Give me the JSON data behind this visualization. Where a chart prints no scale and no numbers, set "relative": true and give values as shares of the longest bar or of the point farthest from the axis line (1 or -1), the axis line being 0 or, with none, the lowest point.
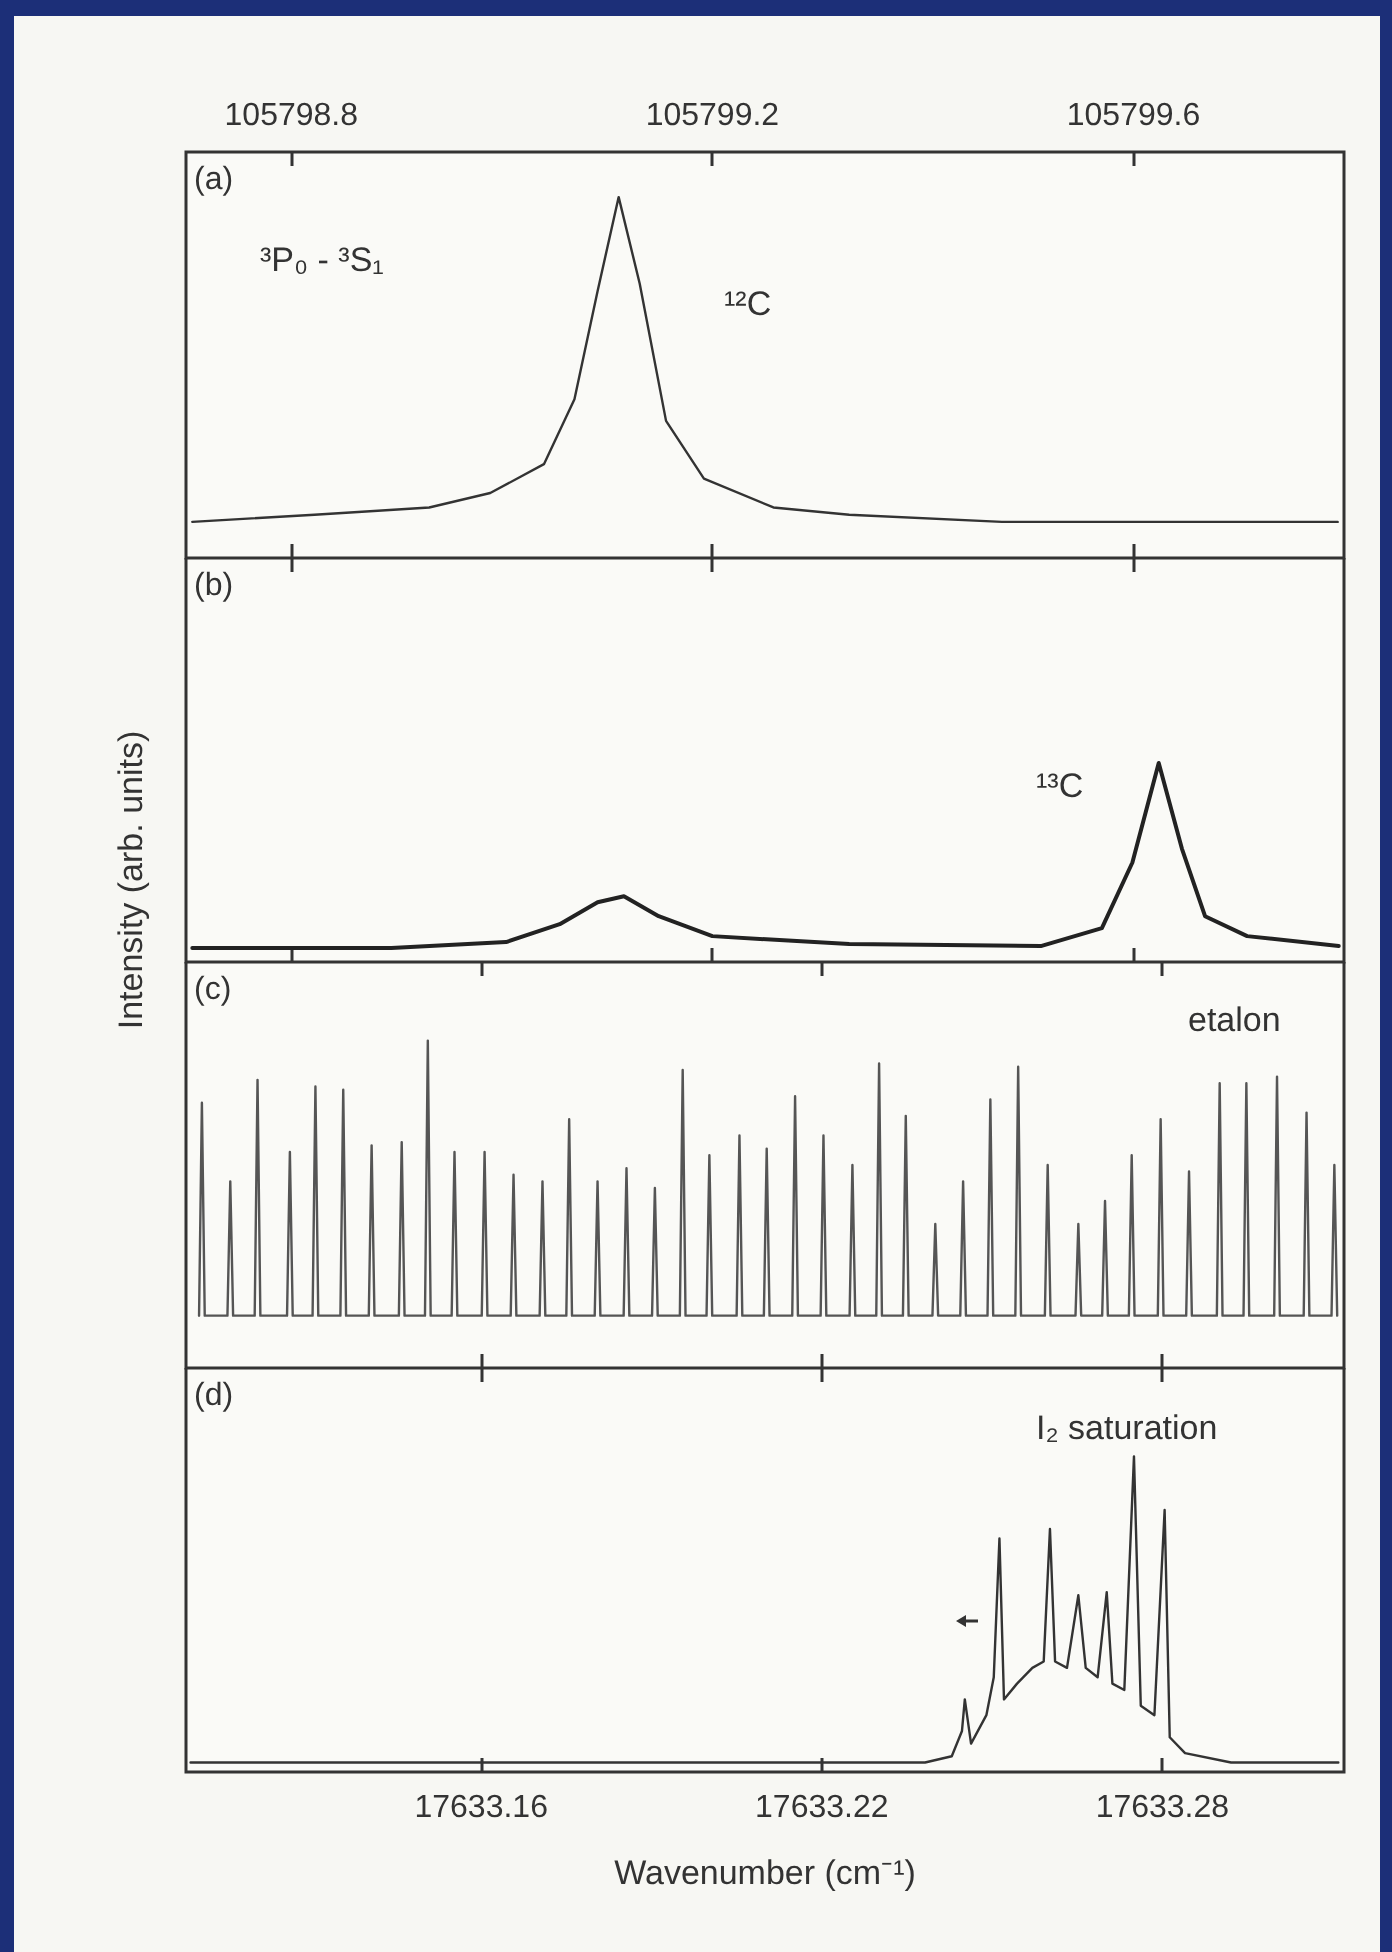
{
  "chart_data": [
    {
      "type": "line",
      "relative": true,
      "marker": "none",
      "color": "#333333",
      "tick_labels": "x",
      "annotations": [
        "(a)",
        "³P₀ - ³S₁",
        "¹²C"
      ],
      "xlim": [
        105798.7,
        105799.8
      ],
      "xticks": [
        105798.8,
        105799.2,
        105799.6
      ],
      "x": [
        105798.706,
        105798.822,
        105798.931,
        105798.989,
        105799.04,
        105799.069,
        105799.091,
        105799.111,
        105799.131,
        105799.156,
        105799.192,
        105799.258,
        105799.33,
        105799.475,
        105799.794
      ],
      "values": [
        0.1,
        0.12,
        0.14,
        0.18,
        0.26,
        0.44,
        0.74,
        1,
        0.76,
        0.38,
        0.22,
        0.14,
        0.12,
        0.1,
        0.1
      ]
    },
    {
      "type": "line",
      "relative": true,
      "marker": "none",
      "color": "#222222",
      "tick_labels": false,
      "ylabel": "Intensity (arb. units)",
      "annotations": [
        "(b)",
        "¹³C"
      ],
      "xlim": [
        105798.7,
        105799.8
      ],
      "xticks": [
        105798.8,
        105799.2,
        105799.6
      ],
      "x": [
        105798.706,
        105798.895,
        105799.004,
        105799.055,
        105799.091,
        105799.116,
        105799.149,
        105799.2,
        105799.33,
        105799.512,
        105799.57,
        105799.599,
        105799.624,
        105799.646,
        105799.668,
        105799.708,
        105799.795
      ],
      "values": [
        0.07,
        0.07,
        0.1,
        0.19,
        0.3,
        0.33,
        0.23,
        0.13,
        0.09,
        0.08,
        0.17,
        0.5,
        1,
        0.57,
        0.23,
        0.13,
        0.08
      ]
    },
    {
      "type": "line",
      "relative": true,
      "marker": "none",
      "color": "#555555",
      "tick_labels": false,
      "annotations": [
        "(c)",
        "etalon"
      ],
      "xlim": [
        17633.108,
        17633.312
      ],
      "xticks": [
        17633.16,
        17633.22,
        17633.28
      ],
      "x": [
        17633.1103,
        17633.1108,
        17633.1113,
        17633.1153,
        17633.1158,
        17633.1163,
        17633.1201,
        17633.1206,
        17633.1211,
        17633.1258,
        17633.1263,
        17633.1268,
        17633.1303,
        17633.1308,
        17633.1313,
        17633.1352,
        17633.1357,
        17633.1362,
        17633.1402,
        17633.1407,
        17633.1412,
        17633.1455,
        17633.146,
        17633.1465,
        17633.1501,
        17633.1506,
        17633.1511,
        17633.1548,
        17633.1553,
        17633.1558,
        17633.1601,
        17633.1606,
        17633.1611,
        17633.1652,
        17633.1657,
        17633.1662,
        17633.1703,
        17633.1708,
        17633.1713,
        17633.175,
        17633.1755,
        17633.176,
        17633.18,
        17633.1805,
        17633.181,
        17633.1851,
        17633.1856,
        17633.1861,
        17633.1901,
        17633.1906,
        17633.1911,
        17633.195,
        17633.1955,
        17633.196,
        17633.1997,
        17633.2002,
        17633.2007,
        17633.205,
        17633.2055,
        17633.206,
        17633.2098,
        17633.2103,
        17633.2108,
        17633.2148,
        17633.2153,
        17633.2158,
        17633.2198,
        17633.2203,
        17633.2208,
        17633.2249,
        17633.2254,
        17633.2259,
        17633.2296,
        17633.2301,
        17633.2306,
        17633.2343,
        17633.2348,
        17633.2353,
        17633.2395,
        17633.24,
        17633.2405,
        17633.2444,
        17633.2449,
        17633.2454,
        17633.2492,
        17633.2497,
        17633.2502,
        17633.2541,
        17633.2546,
        17633.2551,
        17633.2593,
        17633.2598,
        17633.2603,
        17633.2647,
        17633.2652,
        17633.2657,
        17633.2694,
        17633.2699,
        17633.2704,
        17633.2741,
        17633.2746,
        17633.2751,
        17633.2792,
        17633.2797,
        17633.2802,
        17633.2842,
        17633.2847,
        17633.2852,
        17633.2896,
        17633.2901,
        17633.2906,
        17633.2943,
        17633.2948,
        17633.2953,
        17633.2997,
        17633.3002,
        17633.3007,
        17633.3049,
        17633.3054,
        17633.3059,
        17633.3098,
        17633.3103,
        17633.3108
      ],
      "values": [
        0.16,
        0.81,
        0.16,
        0.16,
        0.57,
        0.16,
        0.16,
        0.88,
        0.16,
        0.16,
        0.66,
        0.16,
        0.16,
        0.86,
        0.16,
        0.16,
        0.85,
        0.16,
        0.16,
        0.68,
        0.16,
        0.16,
        0.69,
        0.16,
        0.16,
        1,
        0.16,
        0.16,
        0.66,
        0.16,
        0.16,
        0.66,
        0.16,
        0.16,
        0.59,
        0.16,
        0.16,
        0.57,
        0.16,
        0.16,
        0.76,
        0.16,
        0.16,
        0.57,
        0.16,
        0.16,
        0.61,
        0.16,
        0.16,
        0.55,
        0.16,
        0.16,
        0.91,
        0.16,
        0.16,
        0.65,
        0.16,
        0.16,
        0.71,
        0.16,
        0.16,
        0.67,
        0.16,
        0.16,
        0.83,
        0.16,
        0.16,
        0.71,
        0.16,
        0.16,
        0.62,
        0.16,
        0.16,
        0.93,
        0.16,
        0.16,
        0.77,
        0.16,
        0.16,
        0.44,
        0.16,
        0.16,
        0.57,
        0.16,
        0.16,
        0.82,
        0.16,
        0.16,
        0.92,
        0.16,
        0.16,
        0.62,
        0.16,
        0.16,
        0.44,
        0.16,
        0.16,
        0.51,
        0.16,
        0.16,
        0.65,
        0.16,
        0.16,
        0.76,
        0.16,
        0.16,
        0.6,
        0.16,
        0.16,
        0.87,
        0.16,
        0.16,
        0.87,
        0.16,
        0.16,
        0.89,
        0.16,
        0.16,
        0.78,
        0.16,
        0.16,
        0.62,
        0.16
      ]
    },
    {
      "type": "line",
      "relative": true,
      "marker": "none",
      "color": "#333333",
      "tick_labels": "x",
      "xlabel": "Wavenumber (cm⁻¹)",
      "annotations": [
        "(d)",
        "I₂ saturation"
      ],
      "xlim": [
        17633.108,
        17633.312
      ],
      "xticks": [
        17633.16,
        17633.22,
        17633.28
      ],
      "x": [
        17633.1088,
        17633.1843,
        17633.2382,
        17633.2429,
        17633.2447,
        17633.2452,
        17633.2463,
        17633.249,
        17633.2503,
        17633.2513,
        17633.2521,
        17633.2544,
        17633.2571,
        17633.2591,
        17633.2602,
        17633.2611,
        17633.2632,
        17633.2652,
        17633.2665,
        17633.2686,
        17633.2702,
        17633.2712,
        17633.2733,
        17633.275,
        17633.2762,
        17633.2786,
        17633.2804,
        17633.2813,
        17633.284,
        17633.2921,
        17633.311
      ],
      "values": [
        0.03,
        0.03,
        0.03,
        0.05,
        0.13,
        0.23,
        0.09,
        0.18,
        0.3,
        0.74,
        0.23,
        0.28,
        0.33,
        0.35,
        0.77,
        0.35,
        0.33,
        0.56,
        0.33,
        0.3,
        0.57,
        0.28,
        0.26,
        1,
        0.21,
        0.18,
        0.83,
        0.11,
        0.06,
        0.03,
        0.03
      ]
    }
  ]
}
